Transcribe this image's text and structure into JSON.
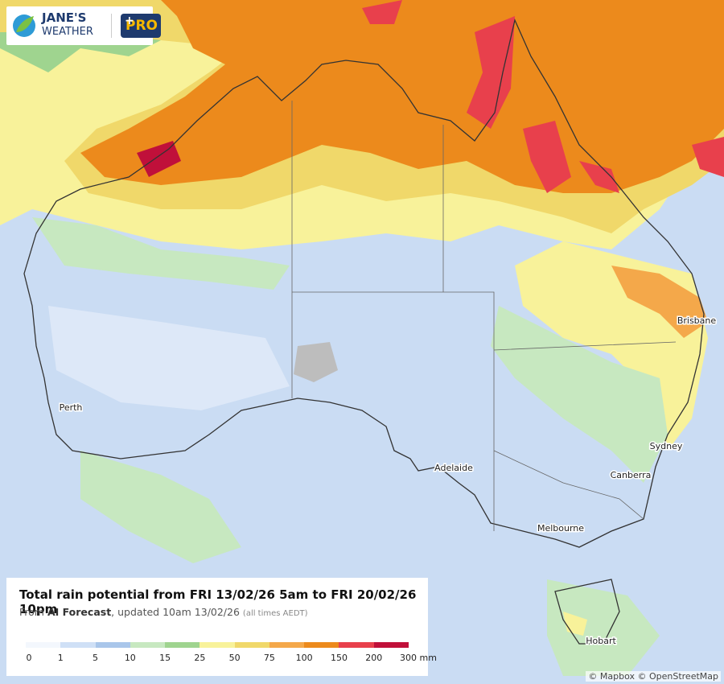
{
  "header": {
    "brand_line1": "JANE'S",
    "brand_line2": "WEATHER",
    "badge": "PRO"
  },
  "map": {
    "places": [
      "Brisbane",
      "Perth",
      "Sydney",
      "Adelaide",
      "Canberra",
      "Melbourne",
      "Hobart"
    ]
  },
  "legend": {
    "title": "Total rain potential from FRI 13/02/26 5am to FRI 20/02/26 10pm",
    "subtitle": {
      "prefix": "From",
      "source": "AI Forecast",
      "updated": ", updated 10am 13/02/26",
      "note": "(all times AEDT)"
    },
    "labels": [
      "0",
      "1",
      "5",
      "10",
      "15",
      "25",
      "50",
      "75",
      "100",
      "150",
      "200",
      "300 mm"
    ],
    "colors": [
      "#f3f7fd",
      "#cfe0f6",
      "#a9c6ea",
      "#c7e8c0",
      "#9fd48f",
      "#f8f29a",
      "#f0d86a",
      "#f4a84a",
      "#ec8a1c",
      "#e8404c",
      "#c0103a",
      "#7a2a48"
    ]
  },
  "attribution": "© Mapbox © OpenStreetMap"
}
